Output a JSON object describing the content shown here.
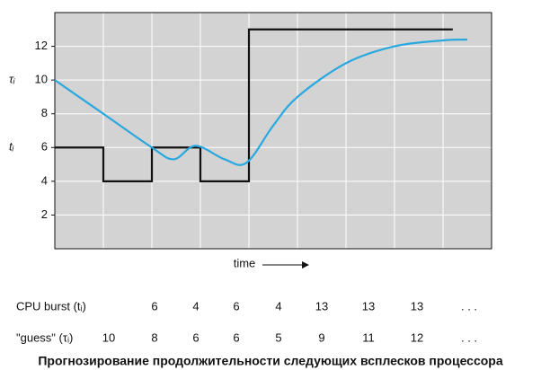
{
  "chart_data": {
    "type": "line",
    "xlim": [
      0,
      9
    ],
    "ylim": [
      0,
      14
    ],
    "xticks": [
      1,
      2,
      3,
      4,
      5,
      6,
      7,
      8
    ],
    "yticks": [
      2,
      4,
      6,
      8,
      10,
      12
    ],
    "grid": true,
    "background": "#d3d3d3",
    "y_annotations": [
      {
        "text": "τᵢ",
        "y": 10
      },
      {
        "text": "tᵢ",
        "y": 6
      }
    ],
    "xlabel": "time",
    "series": [
      {
        "color": "#111111",
        "step": "post",
        "x": [
          0,
          1,
          2,
          3,
          4,
          8.2
        ],
        "values": [
          6,
          4,
          6,
          4,
          13,
          13
        ]
      },
      {
        "color": "#29a8e0",
        "smooth": true,
        "x": [
          0,
          1,
          2,
          2.45,
          2.9,
          3.5,
          3.95,
          4.5,
          5,
          6,
          7,
          8,
          8.5
        ],
        "values": [
          10,
          8,
          6,
          5.3,
          6.1,
          5.3,
          5.1,
          7.3,
          9,
          11,
          12,
          12.35,
          12.4
        ]
      }
    ]
  },
  "table": {
    "rows": [
      {
        "label": "CPU burst (tᵢ)",
        "cells": [
          null,
          6,
          4,
          6,
          4,
          13,
          13,
          13,
          ". . ."
        ]
      },
      {
        "label": "\"guess\" (τᵢ)",
        "cells": [
          10,
          8,
          6,
          6,
          5,
          9,
          11,
          12,
          ". . ."
        ]
      }
    ]
  },
  "caption": "Прогнозирование продолжительности следующих всплесков процессора"
}
